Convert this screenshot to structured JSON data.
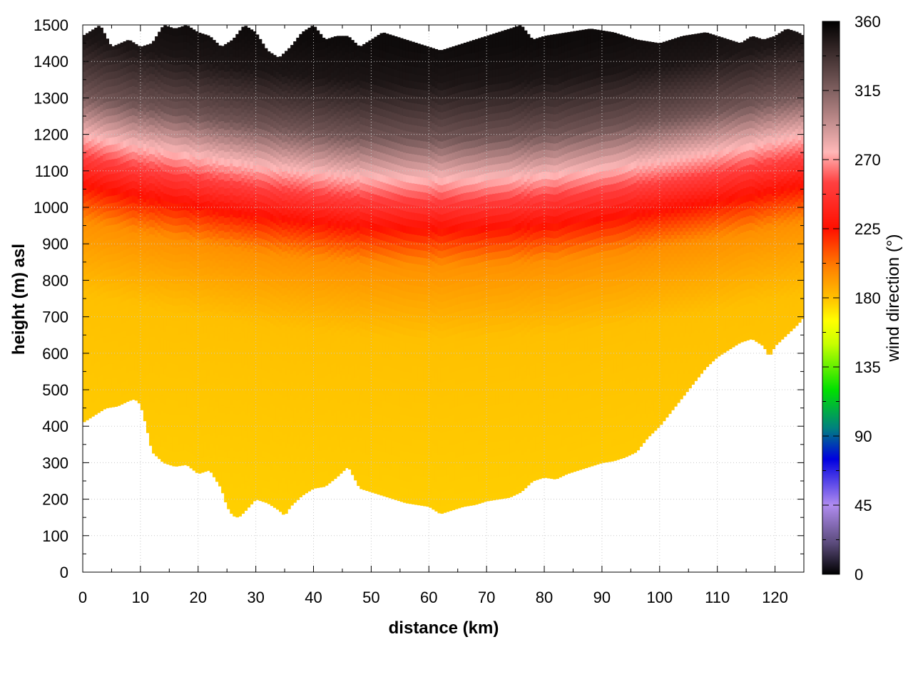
{
  "chart_data": {
    "type": "heatmap",
    "xlabel": "distance (km)",
    "ylabel": "height (m) asl",
    "colorbar_label": "wind direction (°)",
    "xlim": [
      0,
      125
    ],
    "ylim": [
      0,
      1500
    ],
    "clim": [
      0,
      360
    ],
    "x_ticks": [
      0,
      10,
      20,
      30,
      40,
      50,
      60,
      70,
      80,
      90,
      100,
      110,
      120
    ],
    "y_ticks": [
      0,
      100,
      200,
      300,
      400,
      500,
      600,
      700,
      800,
      900,
      1000,
      1100,
      1200,
      1300,
      1400,
      1500
    ],
    "colorbar_ticks": [
      0,
      45,
      90,
      135,
      180,
      225,
      270,
      315,
      360
    ],
    "grid": true,
    "colormap": [
      {
        "value": 0,
        "color": "#000000"
      },
      {
        "value": 20,
        "color": "#5a4a7a"
      },
      {
        "value": 45,
        "color": "#b08cf0"
      },
      {
        "value": 75,
        "color": "#0000e0"
      },
      {
        "value": 95,
        "color": "#008080"
      },
      {
        "value": 120,
        "color": "#00e000"
      },
      {
        "value": 150,
        "color": "#c8ff00"
      },
      {
        "value": 165,
        "color": "#ffff00"
      },
      {
        "value": 180,
        "color": "#ffc000"
      },
      {
        "value": 200,
        "color": "#ff8000"
      },
      {
        "value": 225,
        "color": "#ff1000"
      },
      {
        "value": 255,
        "color": "#ff4040"
      },
      {
        "value": 275,
        "color": "#ffb8b8"
      },
      {
        "value": 315,
        "color": "#806060"
      },
      {
        "value": 360,
        "color": "#000000"
      }
    ],
    "terrain_height": {
      "x": [
        0,
        2,
        4,
        6,
        8,
        9,
        10,
        11,
        12,
        14,
        16,
        18,
        20,
        22,
        24,
        25,
        26,
        27,
        28,
        30,
        32,
        34,
        35,
        36,
        38,
        40,
        42,
        44,
        46,
        48,
        50,
        52,
        54,
        56,
        58,
        60,
        62,
        64,
        66,
        68,
        70,
        72,
        74,
        76,
        78,
        80,
        82,
        84,
        86,
        88,
        90,
        92,
        94,
        96,
        98,
        100,
        102,
        104,
        106,
        108,
        110,
        112,
        114,
        116,
        118,
        119,
        120,
        122,
        124,
        125
      ],
      "height": [
        410,
        430,
        450,
        455,
        470,
        475,
        460,
        400,
        330,
        300,
        290,
        295,
        270,
        280,
        230,
        180,
        155,
        150,
        165,
        200,
        190,
        170,
        155,
        180,
        210,
        230,
        235,
        260,
        290,
        230,
        220,
        210,
        200,
        190,
        185,
        180,
        160,
        170,
        180,
        185,
        195,
        200,
        205,
        220,
        250,
        260,
        255,
        270,
        280,
        290,
        300,
        305,
        315,
        330,
        370,
        400,
        440,
        480,
        520,
        560,
        590,
        610,
        630,
        640,
        620,
        590,
        620,
        650,
        680,
        700
      ]
    },
    "top_height": {
      "x": [
        0,
        2,
        3,
        5,
        8,
        10,
        12,
        14,
        16,
        18,
        20,
        22,
        24,
        26,
        28,
        30,
        32,
        34,
        36,
        38,
        40,
        42,
        44,
        46,
        48,
        50,
        52,
        54,
        56,
        58,
        60,
        62,
        64,
        66,
        68,
        70,
        72,
        74,
        76,
        78,
        80,
        84,
        88,
        92,
        96,
        100,
        104,
        108,
        112,
        114,
        116,
        118,
        120,
        122,
        124,
        125
      ],
      "height": [
        1470,
        1490,
        1500,
        1440,
        1460,
        1440,
        1450,
        1500,
        1490,
        1500,
        1480,
        1470,
        1440,
        1460,
        1500,
        1480,
        1430,
        1410,
        1440,
        1480,
        1500,
        1460,
        1470,
        1470,
        1440,
        1460,
        1480,
        1470,
        1460,
        1450,
        1440,
        1430,
        1440,
        1450,
        1460,
        1470,
        1480,
        1490,
        1500,
        1460,
        1470,
        1480,
        1490,
        1480,
        1460,
        1450,
        1470,
        1480,
        1460,
        1450,
        1470,
        1460,
        1470,
        1490,
        1480,
        1470
      ]
    },
    "direction_profile": [
      {
        "height": 0,
        "direction": 175
      },
      {
        "height": 700,
        "direction": 180
      },
      {
        "height": 900,
        "direction": 195
      },
      {
        "height": 1000,
        "direction": 225
      },
      {
        "height": 1080,
        "direction": 255
      },
      {
        "height": 1150,
        "direction": 280
      },
      {
        "height": 1250,
        "direction": 320
      },
      {
        "height": 1400,
        "direction": 350
      },
      {
        "height": 1500,
        "direction": 355
      }
    ]
  }
}
